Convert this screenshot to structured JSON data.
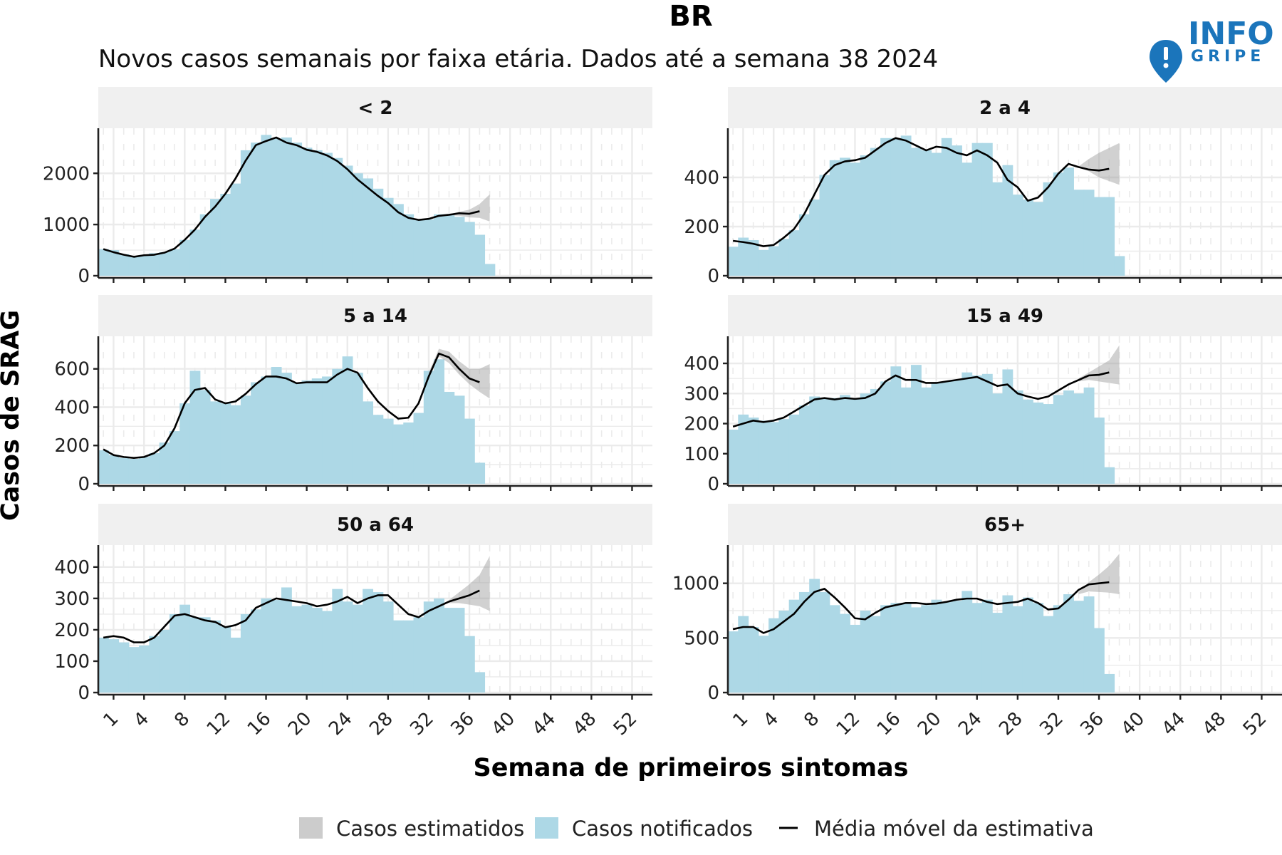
{
  "header": {
    "title": "BR",
    "subtitle": "Novos casos semanais por faixa etária. Dados até a semana 38 2024"
  },
  "logo": {
    "line1": "INFO",
    "line2": "GRIPE",
    "color": "#1b75bb"
  },
  "axes": {
    "ylabel": "Casos de SRAG",
    "xlabel": "Semana de primeiros sintomas",
    "x_ticks": [
      1,
      4,
      8,
      12,
      16,
      20,
      24,
      28,
      32,
      36,
      40,
      44,
      48,
      52
    ],
    "xlim": [
      -0.5,
      54
    ]
  },
  "legend": {
    "position": "bottom",
    "items": [
      {
        "key": "estimated",
        "label": "Casos estimatidos",
        "color": "#cccccc",
        "shape": "box"
      },
      {
        "key": "notified",
        "label": "Casos notificados",
        "color": "#add8e6",
        "shape": "box"
      },
      {
        "key": "moving_avg",
        "label": "Média móvel da estimativa",
        "color": "#000000",
        "shape": "line"
      }
    ]
  },
  "colors": {
    "bar": "#add8e6",
    "ribbon": "#9a9a9a",
    "line": "#000000",
    "strip": "#f0f0f0",
    "grid": "#ebebeb"
  },
  "chart_data": [
    {
      "type": "bar",
      "facet": "< 2",
      "ylim": [
        0,
        2880
      ],
      "y_ticks": [
        0,
        1000,
        2000
      ],
      "weeks": [
        0,
        1,
        2,
        3,
        4,
        5,
        6,
        7,
        8,
        9,
        10,
        11,
        12,
        13,
        14,
        15,
        16,
        17,
        18,
        19,
        20,
        21,
        22,
        23,
        24,
        25,
        26,
        27,
        28,
        29,
        30,
        31,
        32,
        33,
        34,
        35,
        36,
        37,
        38
      ],
      "notified": [
        520,
        500,
        420,
        380,
        390,
        440,
        460,
        520,
        700,
        900,
        1200,
        1500,
        1600,
        1800,
        2450,
        2600,
        2750,
        2680,
        2700,
        2600,
        2500,
        2450,
        2400,
        2300,
        2150,
        2000,
        1900,
        1700,
        1520,
        1400,
        1200,
        1100,
        1100,
        1200,
        1200,
        1150,
        1050,
        800,
        230
      ],
      "moving_avg_weeks": [
        0,
        1,
        2,
        3,
        4,
        5,
        6,
        7,
        8,
        9,
        10,
        11,
        12,
        13,
        14,
        15,
        16,
        17,
        18,
        19,
        20,
        21,
        22,
        23,
        24,
        25,
        26,
        27,
        28,
        29,
        30,
        31,
        32,
        33,
        34,
        35,
        36,
        37
      ],
      "moving_avg": [
        520,
        460,
        410,
        370,
        400,
        410,
        450,
        530,
        700,
        900,
        1150,
        1350,
        1600,
        1900,
        2250,
        2550,
        2630,
        2700,
        2600,
        2550,
        2460,
        2420,
        2350,
        2240,
        2080,
        1880,
        1720,
        1560,
        1420,
        1240,
        1130,
        1090,
        1110,
        1170,
        1190,
        1220,
        1210,
        1260
      ],
      "ribbon_weeks": [
        34,
        35,
        36,
        37,
        38
      ],
      "ribbon_low": [
        1180,
        1170,
        1140,
        1130,
        1060
      ],
      "ribbon_high": [
        1200,
        1250,
        1290,
        1400,
        1590
      ]
    },
    {
      "type": "bar",
      "facet": "2 a 4",
      "ylim": [
        0,
        600
      ],
      "y_ticks": [
        0,
        200,
        400
      ],
      "weeks": [
        0,
        1,
        2,
        3,
        4,
        5,
        6,
        7,
        8,
        9,
        10,
        11,
        12,
        13,
        14,
        15,
        16,
        17,
        18,
        19,
        20,
        21,
        22,
        23,
        24,
        25,
        26,
        27,
        28,
        29,
        30,
        31,
        32,
        33,
        34,
        35,
        36,
        37,
        38
      ],
      "notified": [
        118,
        155,
        145,
        105,
        120,
        150,
        185,
        250,
        310,
        410,
        470,
        480,
        460,
        490,
        520,
        560,
        560,
        570,
        520,
        510,
        500,
        560,
        530,
        460,
        540,
        540,
        380,
        450,
        330,
        310,
        300,
        380,
        420,
        440,
        350,
        350,
        320,
        320,
        80
      ],
      "moving_avg_weeks": [
        0,
        1,
        2,
        3,
        4,
        5,
        6,
        7,
        8,
        9,
        10,
        11,
        12,
        13,
        14,
        15,
        16,
        17,
        18,
        19,
        20,
        21,
        22,
        23,
        24,
        25,
        26,
        27,
        28,
        29,
        30,
        31,
        32,
        33,
        34,
        35,
        36,
        37
      ],
      "moving_avg": [
        142,
        137,
        130,
        120,
        125,
        155,
        190,
        250,
        330,
        410,
        450,
        465,
        470,
        480,
        510,
        540,
        560,
        550,
        530,
        510,
        525,
        520,
        500,
        490,
        510,
        490,
        460,
        390,
        360,
        305,
        318,
        360,
        415,
        455,
        442,
        432,
        428,
        435
      ],
      "ribbon_weeks": [
        34,
        35,
        36,
        37,
        38
      ],
      "ribbon_low": [
        440,
        425,
        400,
        385,
        370
      ],
      "ribbon_high": [
        445,
        475,
        500,
        520,
        540
      ]
    },
    {
      "type": "bar",
      "facet": "5 a 14",
      "ylim": [
        0,
        770
      ],
      "y_ticks": [
        0,
        200,
        400,
        600
      ],
      "weeks": [
        0,
        1,
        2,
        3,
        4,
        5,
        6,
        7,
        8,
        9,
        10,
        11,
        12,
        13,
        14,
        15,
        16,
        17,
        18,
        19,
        20,
        21,
        22,
        23,
        24,
        25,
        26,
        27,
        28,
        29,
        30,
        31,
        32,
        33,
        34,
        35,
        36,
        37,
        38
      ],
      "notified": [
        175,
        150,
        135,
        130,
        140,
        160,
        215,
        275,
        420,
        590,
        490,
        430,
        420,
        410,
        460,
        530,
        560,
        610,
        580,
        530,
        540,
        550,
        560,
        600,
        665,
        580,
        430,
        360,
        340,
        310,
        320,
        370,
        590,
        650,
        480,
        460,
        340,
        110,
        0
      ],
      "moving_avg_weeks": [
        0,
        1,
        2,
        3,
        4,
        5,
        6,
        7,
        8,
        9,
        10,
        11,
        12,
        13,
        14,
        15,
        16,
        17,
        18,
        19,
        20,
        21,
        22,
        23,
        24,
        25,
        26,
        27,
        28,
        29,
        30,
        31,
        32,
        33,
        34,
        35,
        36,
        37
      ],
      "moving_avg": [
        180,
        150,
        140,
        135,
        140,
        160,
        200,
        290,
        420,
        490,
        500,
        440,
        420,
        430,
        470,
        520,
        560,
        560,
        550,
        525,
        530,
        530,
        530,
        570,
        600,
        580,
        500,
        430,
        380,
        340,
        345,
        420,
        560,
        680,
        660,
        600,
        550,
        530
      ],
      "ribbon_weeks": [
        32,
        33,
        34,
        35,
        36,
        37,
        38
      ],
      "ribbon_low": [
        560,
        665,
        630,
        570,
        520,
        480,
        445
      ],
      "ribbon_high": [
        580,
        705,
        690,
        640,
        600,
        600,
        625
      ]
    },
    {
      "type": "bar",
      "facet": "15 a 49",
      "ylim": [
        0,
        490
      ],
      "y_ticks": [
        0,
        100,
        200,
        300,
        400
      ],
      "weeks": [
        0,
        1,
        2,
        3,
        4,
        5,
        6,
        7,
        8,
        9,
        10,
        11,
        12,
        13,
        14,
        15,
        16,
        17,
        18,
        19,
        20,
        21,
        22,
        23,
        24,
        25,
        26,
        27,
        28,
        29,
        30,
        31,
        32,
        33,
        34,
        35,
        36,
        37,
        38
      ],
      "notified": [
        180,
        230,
        220,
        210,
        205,
        215,
        230,
        260,
        290,
        285,
        285,
        295,
        285,
        300,
        315,
        340,
        390,
        320,
        395,
        320,
        335,
        340,
        345,
        370,
        360,
        365,
        300,
        380,
        310,
        280,
        270,
        265,
        295,
        310,
        300,
        320,
        220,
        55,
        0
      ],
      "moving_avg_weeks": [
        0,
        1,
        2,
        3,
        4,
        5,
        6,
        7,
        8,
        9,
        10,
        11,
        12,
        13,
        14,
        15,
        16,
        17,
        18,
        19,
        20,
        21,
        22,
        23,
        24,
        25,
        26,
        27,
        28,
        29,
        30,
        31,
        32,
        33,
        34,
        35,
        36,
        37
      ],
      "moving_avg": [
        190,
        200,
        210,
        205,
        210,
        220,
        240,
        260,
        280,
        285,
        280,
        285,
        282,
        285,
        300,
        340,
        360,
        345,
        345,
        335,
        335,
        340,
        345,
        350,
        355,
        340,
        325,
        330,
        300,
        290,
        282,
        290,
        310,
        330,
        345,
        360,
        362,
        370
      ],
      "ribbon_weeks": [
        34,
        35,
        36,
        37,
        38
      ],
      "ribbon_low": [
        340,
        345,
        340,
        335,
        330
      ],
      "ribbon_high": [
        350,
        370,
        390,
        410,
        460
      ]
    },
    {
      "type": "bar",
      "facet": "50 a 64",
      "ylim": [
        0,
        470
      ],
      "y_ticks": [
        0,
        100,
        200,
        300,
        400
      ],
      "weeks": [
        0,
        1,
        2,
        3,
        4,
        5,
        6,
        7,
        8,
        9,
        10,
        11,
        12,
        13,
        14,
        15,
        16,
        17,
        18,
        19,
        20,
        21,
        22,
        23,
        24,
        25,
        26,
        27,
        28,
        29,
        30,
        31,
        32,
        33,
        34,
        35,
        36,
        37,
        38
      ],
      "notified": [
        175,
        170,
        160,
        145,
        150,
        180,
        200,
        250,
        280,
        240,
        240,
        230,
        210,
        175,
        250,
        265,
        300,
        295,
        335,
        275,
        280,
        270,
        260,
        330,
        290,
        280,
        330,
        320,
        290,
        230,
        230,
        240,
        290,
        300,
        270,
        270,
        180,
        65,
        0
      ],
      "moving_avg_weeks": [
        0,
        1,
        2,
        3,
        4,
        5,
        6,
        7,
        8,
        9,
        10,
        11,
        12,
        13,
        14,
        15,
        16,
        17,
        18,
        19,
        20,
        21,
        22,
        23,
        24,
        25,
        26,
        27,
        28,
        29,
        30,
        31,
        32,
        33,
        34,
        35,
        36,
        37
      ],
      "moving_avg": [
        175,
        180,
        175,
        160,
        160,
        175,
        210,
        245,
        250,
        240,
        230,
        225,
        208,
        215,
        230,
        270,
        285,
        300,
        295,
        290,
        285,
        275,
        280,
        290,
        305,
        285,
        300,
        310,
        310,
        280,
        250,
        240,
        260,
        275,
        290,
        300,
        310,
        325
      ],
      "ribbon_weeks": [
        34,
        35,
        36,
        37,
        38
      ],
      "ribbon_low": [
        285,
        285,
        280,
        275,
        260
      ],
      "ribbon_high": [
        295,
        320,
        345,
        375,
        435
      ]
    },
    {
      "type": "bar",
      "facet": "65+",
      "ylim": [
        0,
        1350
      ],
      "y_ticks": [
        0,
        500,
        1000
      ],
      "weeks": [
        0,
        1,
        2,
        3,
        4,
        5,
        6,
        7,
        8,
        9,
        10,
        11,
        12,
        13,
        14,
        15,
        16,
        17,
        18,
        19,
        20,
        21,
        22,
        23,
        24,
        25,
        26,
        27,
        28,
        29,
        30,
        31,
        32,
        33,
        34,
        35,
        36,
        37,
        38
      ],
      "notified": [
        560,
        700,
        600,
        520,
        680,
        750,
        850,
        920,
        1040,
        920,
        800,
        720,
        620,
        750,
        700,
        800,
        820,
        820,
        780,
        800,
        850,
        830,
        840,
        930,
        820,
        850,
        730,
        890,
        790,
        870,
        820,
        700,
        800,
        900,
        840,
        880,
        590,
        170,
        0
      ],
      "moving_avg_weeks": [
        0,
        1,
        2,
        3,
        4,
        5,
        6,
        7,
        8,
        9,
        10,
        11,
        12,
        13,
        14,
        15,
        16,
        17,
        18,
        19,
        20,
        21,
        22,
        23,
        24,
        25,
        26,
        27,
        28,
        29,
        30,
        31,
        32,
        33,
        34,
        35,
        36,
        37
      ],
      "moving_avg": [
        580,
        600,
        600,
        545,
        580,
        650,
        720,
        830,
        920,
        950,
        870,
        780,
        680,
        670,
        730,
        780,
        800,
        820,
        820,
        810,
        815,
        830,
        850,
        860,
        860,
        830,
        810,
        820,
        830,
        860,
        820,
        760,
        770,
        850,
        940,
        990,
        1000,
        1010
      ],
      "ribbon_weeks": [
        34,
        35,
        36,
        37,
        38
      ],
      "ribbon_low": [
        900,
        925,
        920,
        915,
        900
      ],
      "ribbon_high": [
        920,
        1010,
        1080,
        1160,
        1270
      ]
    }
  ]
}
